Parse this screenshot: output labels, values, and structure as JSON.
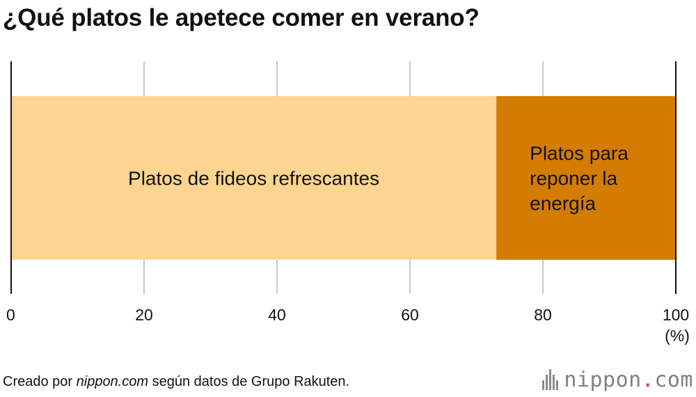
{
  "chart_data": {
    "type": "bar",
    "orientation": "horizontal-stacked",
    "title": "¿Qué platos le apetece comer en verano?",
    "segments": [
      {
        "label": "Platos de fideos refrescantes",
        "label_lines": [
          "Platos de fideos refrescantes"
        ],
        "value": 73,
        "color": "#fdd590"
      },
      {
        "label": "Platos para reponer la energía",
        "label_lines": [
          "Platos para",
          "reponer la",
          "energía"
        ],
        "value": 27,
        "color": "#d47c02"
      }
    ],
    "xlim": [
      0,
      100
    ],
    "ticks": [
      0,
      20,
      40,
      60,
      80,
      100
    ],
    "unit_label": "(%)",
    "grid": true
  },
  "footer": {
    "source_prefix": "Creado por ",
    "source_site": "nippon.com",
    "source_suffix": " según datos de Grupo Rakuten."
  },
  "logo": {
    "name": "nippon",
    "dot": ".",
    "domain": "com"
  }
}
